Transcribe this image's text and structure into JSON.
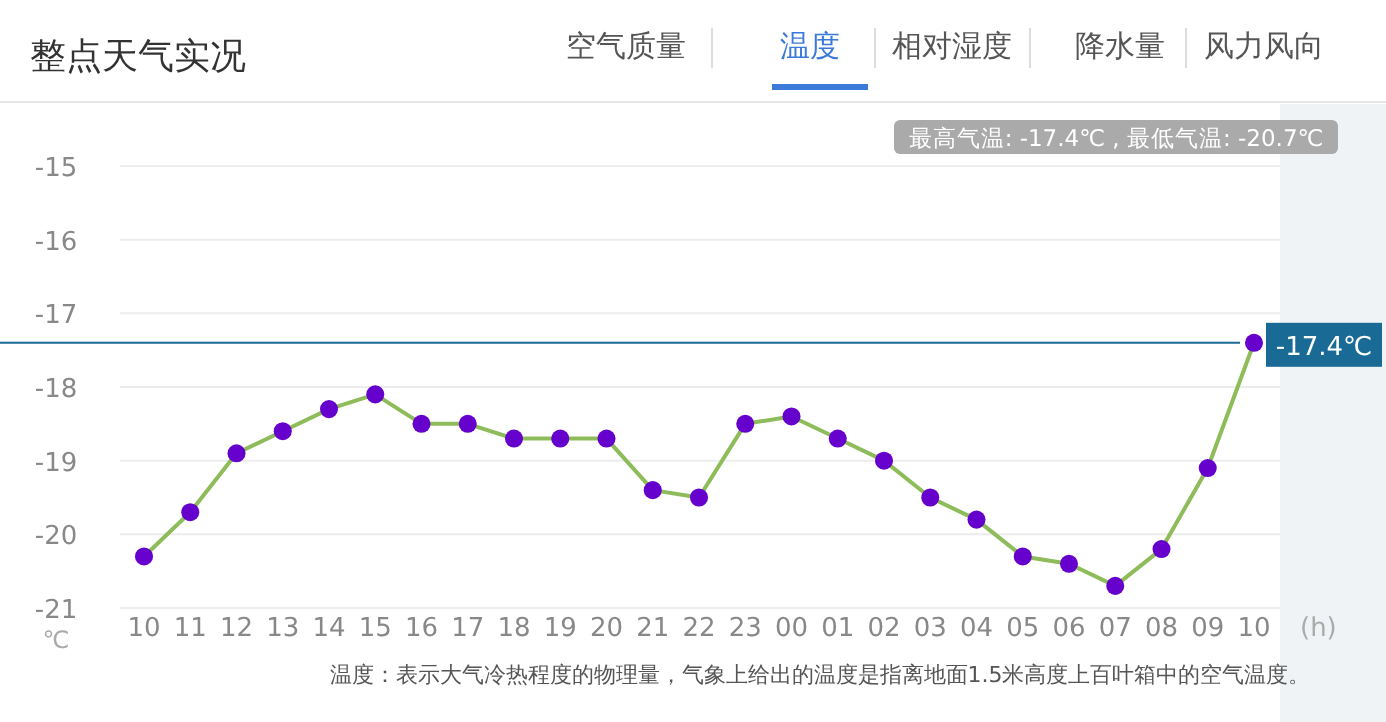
{
  "chart_data": {
    "type": "line",
    "title": "整点天气实况",
    "xlabel": "(h)",
    "ylabel": "℃",
    "categories": [
      "10",
      "11",
      "12",
      "13",
      "14",
      "15",
      "16",
      "17",
      "18",
      "19",
      "20",
      "21",
      "22",
      "23",
      "00",
      "01",
      "02",
      "03",
      "04",
      "05",
      "06",
      "07",
      "08",
      "09",
      "10"
    ],
    "series": [
      {
        "color": "#8fbc5a",
        "values": [
          -20.3,
          -19.7,
          -18.9,
          -18.6,
          -18.3,
          -18.1,
          -18.5,
          -18.5,
          -18.7,
          -18.7,
          -18.7,
          -19.4,
          -19.5,
          -18.5,
          -18.4,
          -18.7,
          -19.0,
          -19.5,
          -19.8,
          -20.3,
          -20.4,
          -20.7,
          -20.2,
          -19.1,
          -17.4
        ]
      }
    ],
    "marker": "circle",
    "grid": "y",
    "ylim": [
      -21,
      -15
    ],
    "yticks": [
      -21,
      -20,
      -19,
      -18,
      -17,
      -16,
      -15
    ],
    "ref_lines": [
      {
        "axis": "y",
        "value": -17.4,
        "label": "-17.4℃",
        "color": "#1a6a96"
      }
    ],
    "annotations": [
      "空气质量",
      "温度",
      "相对湿度",
      "降水量",
      "风力风向",
      "最高气温: -17.4℃ , 最低气温: -20.7℃",
      "温度：表示大气冷热程度的物理量，气象上给出的温度是指离地面1.5米高度上百叶箱中的空气温度。"
    ]
  }
}
